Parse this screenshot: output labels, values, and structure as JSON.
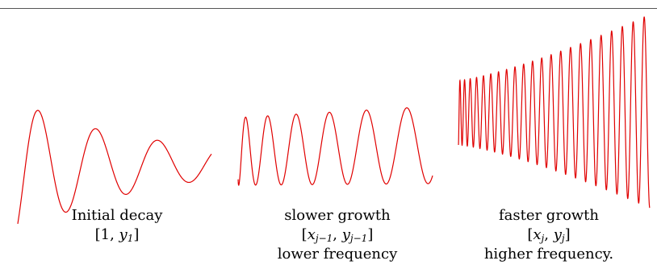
{
  "panels": [
    {
      "caption_line1": "Initial decay",
      "interval_prefix": "[",
      "interval_const": "1",
      "interval_sep": ", ",
      "interval_var": "y",
      "interval_sub": "1",
      "interval_suffix": "]",
      "caption_line3": ""
    },
    {
      "caption_line1": "slower growth",
      "x_var": "x",
      "x_sub": "j−1",
      "y_var": "y",
      "y_sub": "j−1",
      "caption_line3": "lower frequency"
    },
    {
      "caption_line1": "faster growth",
      "x_var": "x",
      "x_sub": "j",
      "y_var": "y",
      "y_sub": "j",
      "caption_line3": "higher frequency."
    }
  ],
  "colors": {
    "wave": "#e00000",
    "rule": "#555555"
  }
}
